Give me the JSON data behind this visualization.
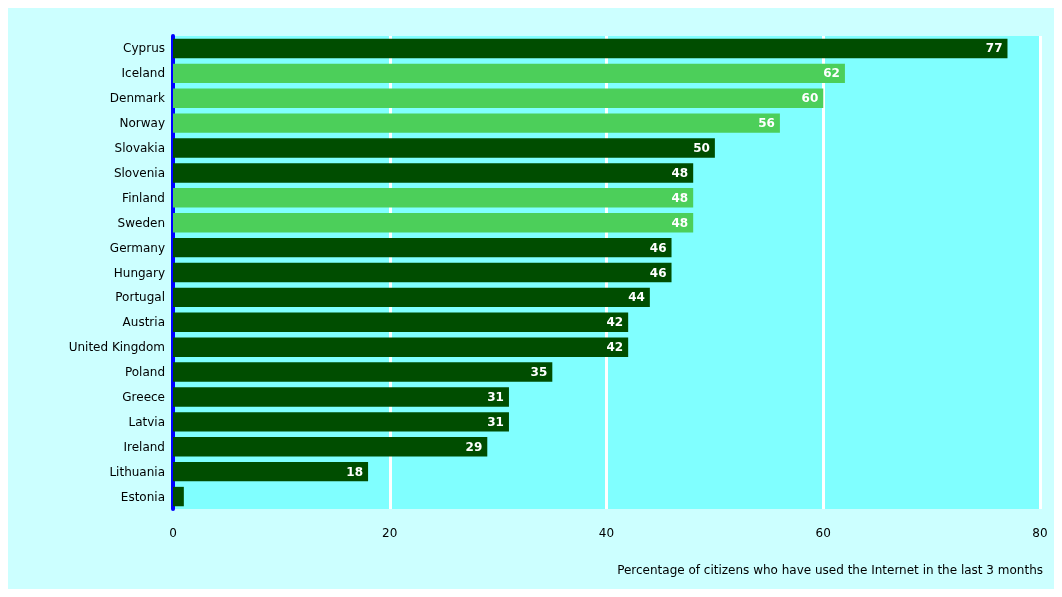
{
  "chart_data": {
    "type": "bar",
    "orientation": "horizontal",
    "xlabel": "Percentage of citizens who have used the Internet in the last 3 months",
    "categories": [
      "Cyprus",
      "Iceland",
      "Denmark",
      "Norway",
      "Slovakia",
      "Slovenia",
      "Finland",
      "Sweden",
      "Germany",
      "Hungary",
      "Portugal",
      "Austria",
      "United Kingdom",
      "Poland",
      "Greece",
      "Latvia",
      "Ireland",
      "Lithuania",
      "Estonia"
    ],
    "values": [
      77,
      62,
      60,
      56,
      50,
      48,
      48,
      48,
      46,
      46,
      44,
      42,
      42,
      35,
      31,
      31,
      29,
      18,
      1
    ],
    "value_labels": [
      "77",
      "62",
      "60",
      "56",
      "50",
      "48",
      "48",
      "48",
      "46",
      "46",
      "44",
      "42",
      "42",
      "35",
      "31",
      "31",
      "29",
      "18",
      null
    ],
    "colors": [
      "#004d00",
      "#4ccf5a",
      "#4ccf5a",
      "#4ccf5a",
      "#004d00",
      "#004d00",
      "#4ccf5a",
      "#4ccf5a",
      "#004d00",
      "#004d00",
      "#004d00",
      "#004d00",
      "#004d00",
      "#004d00",
      "#004d00",
      "#004d00",
      "#004d00",
      "#004d00",
      "#004d00"
    ],
    "xlim": [
      0,
      80
    ],
    "xticks": [
      0,
      20,
      40,
      60,
      80
    ],
    "grid": "x"
  }
}
